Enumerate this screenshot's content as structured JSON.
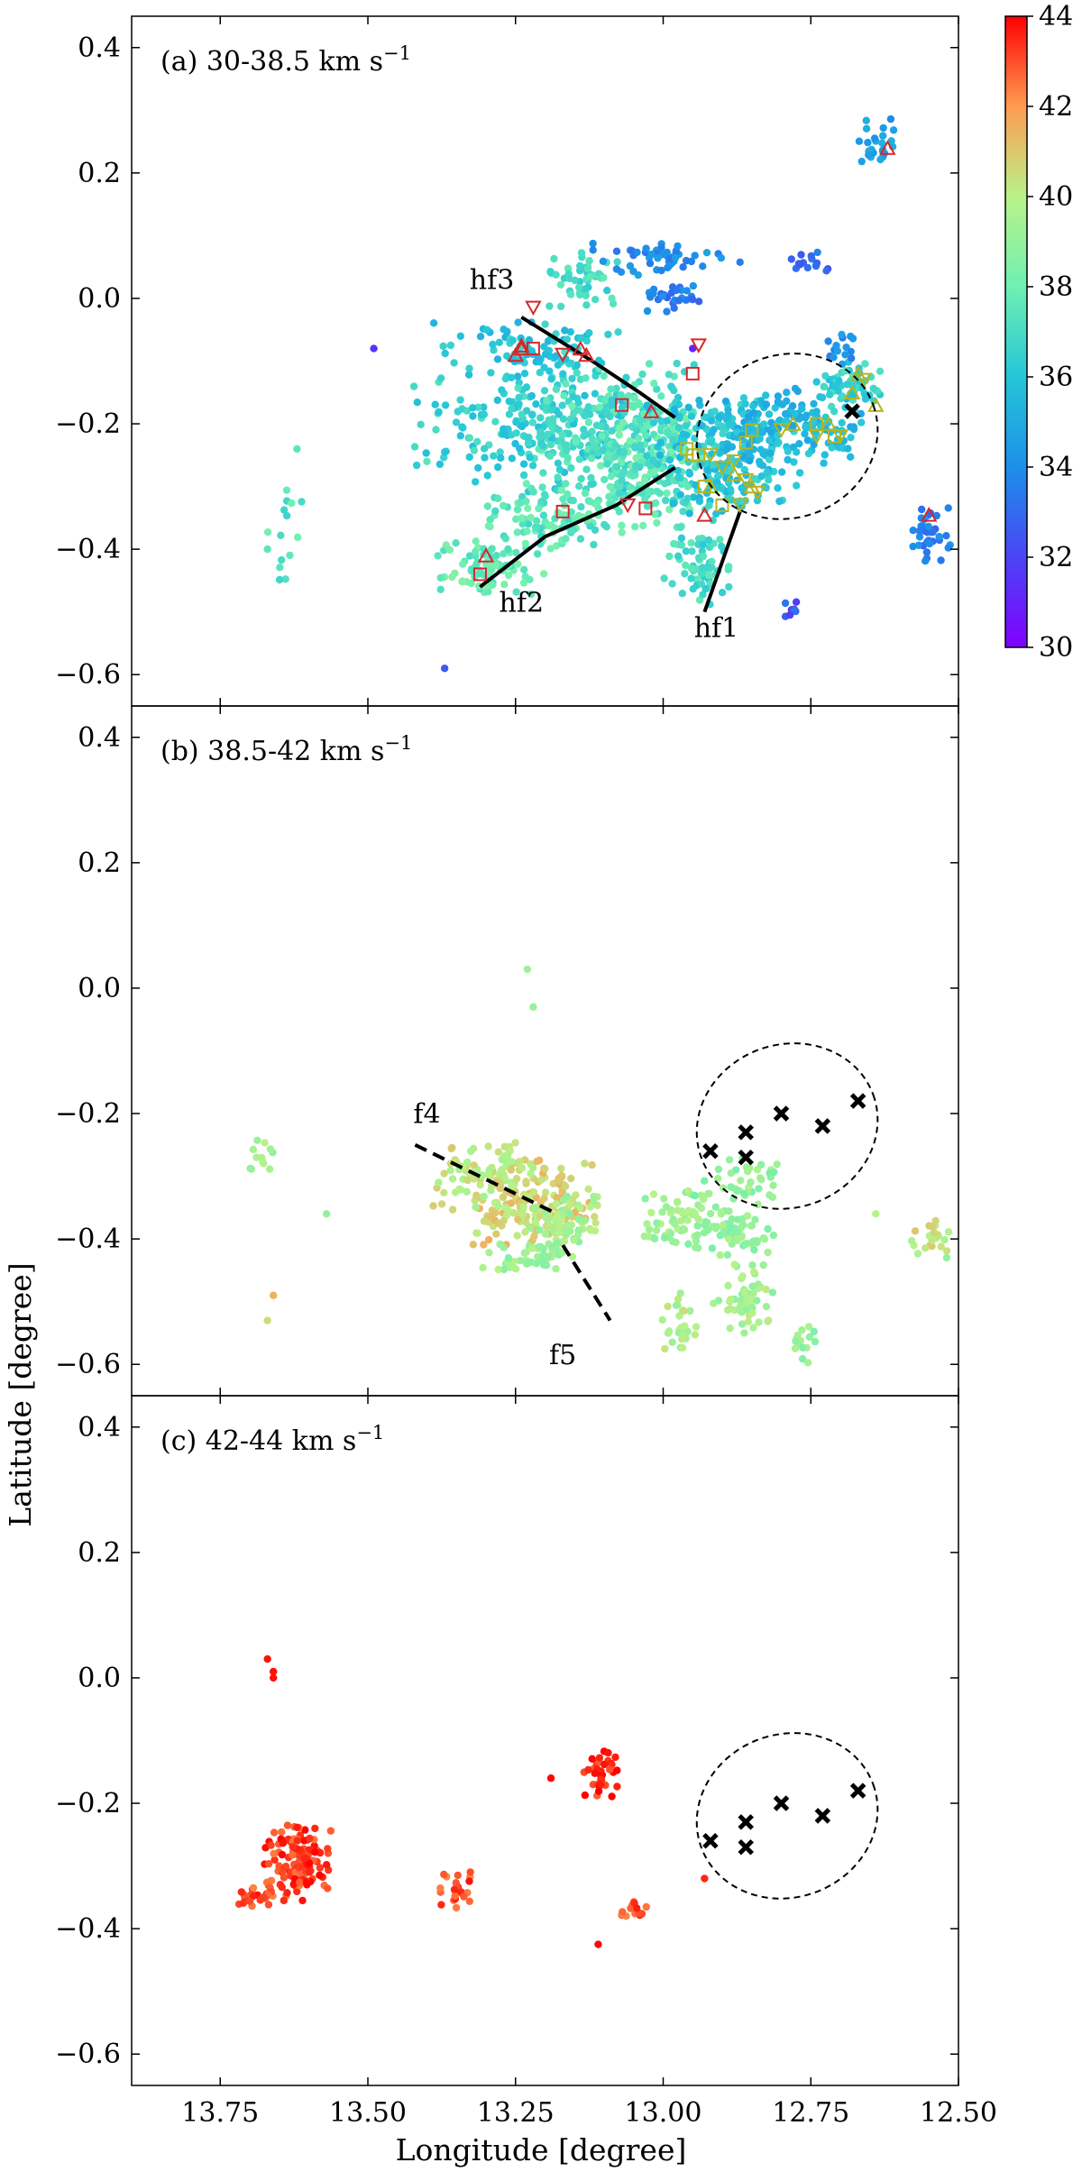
{
  "figure": {
    "xlabel": "Longitude [degree]",
    "ylabel": "Latitude [degree]"
  },
  "colorbar": {
    "ticks": [
      "30",
      "32",
      "34",
      "36",
      "38",
      "40",
      "42",
      "44"
    ],
    "range": [
      30,
      44
    ],
    "cmap": "rainbow"
  },
  "chart_data": [
    {
      "type": "scatter",
      "panel": "a",
      "title_prefix": "(a)  30-38.5 km s",
      "title_sup": "−1",
      "xlim": [
        13.9,
        12.5
      ],
      "ylim": [
        -0.65,
        0.45
      ],
      "xticks": [
        13.75,
        13.5,
        13.25,
        13.0,
        12.75,
        12.5
      ],
      "yticks": [
        -0.6,
        -0.4,
        -0.2,
        0.0,
        0.2,
        0.4
      ],
      "ytick_labels": [
        "−0.6",
        "−0.4",
        "−0.2",
        "0.0",
        "0.2",
        "0.4"
      ],
      "clumps": [
        {
          "x": 13.18,
          "y": -0.2,
          "w": 0.26,
          "h": 0.12,
          "v": 36.5,
          "n": 260
        },
        {
          "x": 13.08,
          "y": -0.22,
          "w": 0.16,
          "h": 0.12,
          "v": 37.2,
          "n": 200
        },
        {
          "x": 13.02,
          "y": -0.27,
          "w": 0.14,
          "h": 0.12,
          "v": 37.5,
          "n": 180
        },
        {
          "x": 12.9,
          "y": -0.25,
          "w": 0.14,
          "h": 0.1,
          "v": 36.0,
          "n": 220
        },
        {
          "x": 12.78,
          "y": -0.2,
          "w": 0.14,
          "h": 0.08,
          "v": 35.5,
          "n": 160
        },
        {
          "x": 12.68,
          "y": -0.14,
          "w": 0.06,
          "h": 0.05,
          "v": 36.5,
          "n": 60
        },
        {
          "x": 13.2,
          "y": -0.35,
          "w": 0.12,
          "h": 0.06,
          "v": 37.5,
          "n": 100
        },
        {
          "x": 13.3,
          "y": -0.43,
          "w": 0.1,
          "h": 0.05,
          "v": 37.8,
          "n": 80
        },
        {
          "x": 12.94,
          "y": -0.42,
          "w": 0.06,
          "h": 0.08,
          "v": 37.0,
          "n": 70
        },
        {
          "x": 13.23,
          "y": -0.08,
          "w": 0.18,
          "h": 0.05,
          "v": 36.0,
          "n": 90
        },
        {
          "x": 13.14,
          "y": 0.03,
          "w": 0.07,
          "h": 0.06,
          "v": 37.0,
          "n": 50
        },
        {
          "x": 13.0,
          "y": 0.06,
          "w": 0.14,
          "h": 0.03,
          "v": 34.0,
          "n": 50
        },
        {
          "x": 12.98,
          "y": 0.0,
          "w": 0.06,
          "h": 0.03,
          "v": 33.5,
          "n": 30
        },
        {
          "x": 12.75,
          "y": 0.06,
          "w": 0.04,
          "h": 0.02,
          "v": 33.0,
          "n": 15
        },
        {
          "x": 12.64,
          "y": 0.25,
          "w": 0.04,
          "h": 0.04,
          "v": 34.5,
          "n": 25
        },
        {
          "x": 12.55,
          "y": -0.38,
          "w": 0.04,
          "h": 0.06,
          "v": 33.5,
          "n": 35
        },
        {
          "x": 12.7,
          "y": -0.08,
          "w": 0.04,
          "h": 0.03,
          "v": 34.0,
          "n": 15
        },
        {
          "x": 12.78,
          "y": -0.5,
          "w": 0.02,
          "h": 0.02,
          "v": 32.5,
          "n": 8
        },
        {
          "x": 13.64,
          "y": -0.38,
          "w": 0.03,
          "h": 0.08,
          "v": 37.5,
          "n": 14
        }
      ],
      "isolated": [
        {
          "x": 13.49,
          "y": -0.08,
          "v": 31.5
        },
        {
          "x": 13.37,
          "y": -0.59,
          "v": 32.5
        },
        {
          "x": 13.62,
          "y": -0.24,
          "v": 37.5
        },
        {
          "x": 13.67,
          "y": -0.4,
          "v": 37.5
        },
        {
          "x": 13.4,
          "y": -0.26,
          "v": 37.5
        },
        {
          "x": 12.95,
          "y": -0.08,
          "v": 31.0
        }
      ],
      "filaments": [
        {
          "label": "hf1",
          "x": [
            12.93,
            12.9,
            12.87
          ],
          "y": [
            -0.5,
            -0.42,
            -0.34
          ]
        },
        {
          "label": "hf2",
          "x": [
            13.31,
            13.2,
            13.08,
            12.98
          ],
          "y": [
            -0.46,
            -0.38,
            -0.33,
            -0.27
          ]
        },
        {
          "label": "hf3",
          "x": [
            13.24,
            13.12,
            13.04,
            12.98
          ],
          "y": [
            -0.03,
            -0.1,
            -0.15,
            -0.19
          ]
        }
      ],
      "filament_labels": [
        {
          "text": "hf1",
          "x": 12.91,
          "y": -0.54
        },
        {
          "text": "hf2",
          "x": 13.24,
          "y": -0.5
        },
        {
          "text": "hf3",
          "x": 13.29,
          "y": 0.015
        }
      ],
      "markers_red_up": [
        [
          13.25,
          -0.09
        ],
        [
          13.24,
          -0.08
        ],
        [
          13.14,
          -0.08
        ],
        [
          13.13,
          -0.09
        ],
        [
          13.02,
          -0.18
        ],
        [
          12.93,
          -0.345
        ],
        [
          12.62,
          0.24
        ],
        [
          12.55,
          -0.345
        ],
        [
          13.3,
          -0.41
        ],
        [
          13.24,
          -0.075
        ]
      ],
      "markers_red_down": [
        [
          13.22,
          -0.015
        ],
        [
          13.17,
          -0.09
        ],
        [
          12.94,
          -0.075
        ],
        [
          13.06,
          -0.33
        ]
      ],
      "markers_red_square": [
        [
          13.22,
          -0.08
        ],
        [
          13.07,
          -0.17
        ],
        [
          12.95,
          -0.12
        ],
        [
          13.17,
          -0.34
        ],
        [
          13.03,
          -0.335
        ],
        [
          13.31,
          -0.44
        ]
      ],
      "markers_olive_up": [
        [
          12.78,
          -0.2
        ],
        [
          12.72,
          -0.2
        ],
        [
          12.68,
          -0.15
        ],
        [
          12.67,
          -0.12
        ],
        [
          12.64,
          -0.17
        ],
        [
          12.85,
          -0.3
        ],
        [
          12.88,
          -0.28
        ],
        [
          12.92,
          -0.3
        ]
      ],
      "markers_olive_down": [
        [
          12.92,
          -0.25
        ],
        [
          12.9,
          -0.27
        ],
        [
          12.88,
          -0.26
        ],
        [
          12.86,
          -0.29
        ],
        [
          12.84,
          -0.31
        ],
        [
          12.74,
          -0.22
        ],
        [
          12.7,
          -0.22
        ],
        [
          12.66,
          -0.13
        ],
        [
          12.8,
          -0.21
        ],
        [
          12.87,
          -0.33
        ]
      ],
      "markers_olive_square": [
        [
          12.96,
          -0.24
        ],
        [
          12.95,
          -0.25
        ],
        [
          12.93,
          -0.3
        ],
        [
          12.9,
          -0.33
        ],
        [
          12.86,
          -0.23
        ],
        [
          12.85,
          -0.21
        ],
        [
          12.74,
          -0.2
        ],
        [
          12.71,
          -0.22
        ],
        [
          12.94,
          -0.25
        ]
      ],
      "cores": [
        [
          12.68,
          -0.18
        ]
      ],
      "ellipse": {
        "cx": 12.79,
        "cy": -0.22,
        "rx": 0.155,
        "ry": 0.13,
        "angle": -20
      }
    },
    {
      "type": "scatter",
      "panel": "b",
      "title_prefix": "(b)  38.5-42 km s",
      "title_sup": "−1",
      "xlim": [
        13.9,
        12.5
      ],
      "ylim": [
        -0.65,
        0.45
      ],
      "xticks": [
        13.75,
        13.5,
        13.25,
        13.0,
        12.75,
        12.5
      ],
      "yticks": [
        -0.6,
        -0.4,
        -0.2,
        0.0,
        0.2,
        0.4
      ],
      "ytick_labels": [
        "−0.6",
        "−0.4",
        "−0.2",
        "0.0",
        "0.2",
        "0.4"
      ],
      "clumps": [
        {
          "x": 13.22,
          "y": -0.35,
          "w": 0.12,
          "h": 0.08,
          "v": 40.8,
          "n": 170
        },
        {
          "x": 13.3,
          "y": -0.3,
          "w": 0.1,
          "h": 0.06,
          "v": 40.2,
          "n": 90
        },
        {
          "x": 13.17,
          "y": -0.38,
          "w": 0.08,
          "h": 0.06,
          "v": 39.5,
          "n": 70
        },
        {
          "x": 13.24,
          "y": -0.43,
          "w": 0.08,
          "h": 0.03,
          "v": 39.2,
          "n": 40
        },
        {
          "x": 12.98,
          "y": -0.37,
          "w": 0.06,
          "h": 0.06,
          "v": 39.3,
          "n": 60
        },
        {
          "x": 12.88,
          "y": -0.38,
          "w": 0.08,
          "h": 0.06,
          "v": 39.0,
          "n": 70
        },
        {
          "x": 12.86,
          "y": -0.5,
          "w": 0.06,
          "h": 0.07,
          "v": 39.5,
          "n": 55
        },
        {
          "x": 12.97,
          "y": -0.53,
          "w": 0.04,
          "h": 0.05,
          "v": 39.8,
          "n": 30
        },
        {
          "x": 12.76,
          "y": -0.56,
          "w": 0.02,
          "h": 0.04,
          "v": 39.0,
          "n": 15
        },
        {
          "x": 12.86,
          "y": -0.3,
          "w": 0.08,
          "h": 0.04,
          "v": 39.0,
          "n": 35
        },
        {
          "x": 12.55,
          "y": -0.4,
          "w": 0.04,
          "h": 0.04,
          "v": 40.2,
          "n": 22
        },
        {
          "x": 13.68,
          "y": -0.27,
          "w": 0.03,
          "h": 0.04,
          "v": 39.5,
          "n": 12
        }
      ],
      "isolated": [
        {
          "x": 13.23,
          "y": 0.03,
          "v": 39.3
        },
        {
          "x": 13.22,
          "y": -0.03,
          "v": 39.0
        },
        {
          "x": 13.66,
          "y": -0.49,
          "v": 41.5
        },
        {
          "x": 13.67,
          "y": -0.53,
          "v": 40.5
        },
        {
          "x": 13.57,
          "y": -0.36,
          "v": 39.0
        },
        {
          "x": 12.82,
          "y": -0.33,
          "v": 39.2
        },
        {
          "x": 12.64,
          "y": -0.36,
          "v": 40.0
        },
        {
          "x": 12.52,
          "y": -0.43,
          "v": 39.0
        },
        {
          "x": 13.36,
          "y": -0.28,
          "v": 40.5
        }
      ],
      "filaments": [
        {
          "label": "f4",
          "x": [
            13.42,
            13.18
          ],
          "y": [
            -0.25,
            -0.36
          ]
        },
        {
          "label": "f5",
          "x": [
            13.17,
            13.09
          ],
          "y": [
            -0.41,
            -0.53
          ]
        }
      ],
      "filament_labels": [
        {
          "text": "f4",
          "x": 13.4,
          "y": -0.215
        },
        {
          "text": "f5",
          "x": 13.17,
          "y": -0.6
        }
      ],
      "cores": [
        [
          12.67,
          -0.18
        ],
        [
          12.73,
          -0.22
        ],
        [
          12.8,
          -0.2
        ],
        [
          12.86,
          -0.23
        ],
        [
          12.86,
          -0.27
        ],
        [
          12.92,
          -0.26
        ]
      ],
      "ellipse": {
        "cx": 12.79,
        "cy": -0.22,
        "rx": 0.155,
        "ry": 0.13,
        "angle": -20
      }
    },
    {
      "type": "scatter",
      "panel": "c",
      "title_prefix": "(c)  42-44 km s",
      "title_sup": "−1",
      "xlim": [
        13.9,
        12.5
      ],
      "ylim": [
        -0.65,
        0.45
      ],
      "xticks": [
        13.75,
        13.5,
        13.25,
        13.0,
        12.75,
        12.5
      ],
      "xtick_labels": [
        "13.75",
        "13.50",
        "13.25",
        "13.00",
        "12.75",
        "12.50"
      ],
      "yticks": [
        -0.6,
        -0.4,
        -0.2,
        0.0,
        0.2,
        0.4
      ],
      "ytick_labels": [
        "−0.6",
        "−0.4",
        "−0.2",
        "0.0",
        "0.2",
        "0.4"
      ],
      "clumps": [
        {
          "x": 13.62,
          "y": -0.29,
          "w": 0.06,
          "h": 0.07,
          "v": 43.2,
          "n": 130
        },
        {
          "x": 13.69,
          "y": -0.35,
          "w": 0.04,
          "h": 0.02,
          "v": 43.0,
          "n": 25
        },
        {
          "x": 13.35,
          "y": -0.34,
          "w": 0.04,
          "h": 0.04,
          "v": 43.0,
          "n": 25
        },
        {
          "x": 13.1,
          "y": -0.15,
          "w": 0.04,
          "h": 0.04,
          "v": 43.5,
          "n": 35
        },
        {
          "x": 13.04,
          "y": -0.37,
          "w": 0.04,
          "h": 0.02,
          "v": 43.0,
          "n": 15
        }
      ],
      "isolated": [
        {
          "x": 13.67,
          "y": 0.03,
          "v": 43.8
        },
        {
          "x": 13.66,
          "y": 0.01,
          "v": 43.8
        },
        {
          "x": 13.66,
          "y": 0.0,
          "v": 43.8
        },
        {
          "x": 13.19,
          "y": -0.16,
          "v": 43.9
        },
        {
          "x": 13.11,
          "y": -0.425,
          "v": 43.9
        },
        {
          "x": 12.93,
          "y": -0.32,
          "v": 43.5
        }
      ],
      "filaments": [],
      "filament_labels": [],
      "cores": [
        [
          12.67,
          -0.18
        ],
        [
          12.73,
          -0.22
        ],
        [
          12.8,
          -0.2
        ],
        [
          12.86,
          -0.23
        ],
        [
          12.86,
          -0.27
        ],
        [
          12.92,
          -0.26
        ]
      ],
      "ellipse": {
        "cx": 12.79,
        "cy": -0.22,
        "rx": 0.155,
        "ry": 0.13,
        "angle": -20
      }
    }
  ]
}
